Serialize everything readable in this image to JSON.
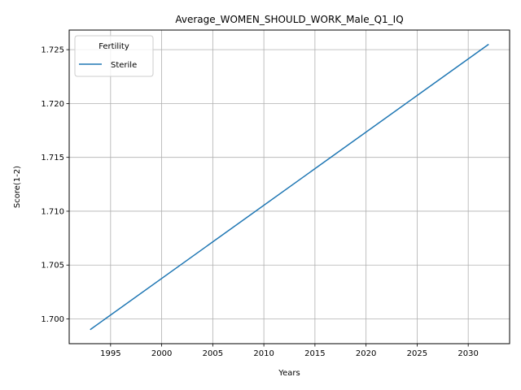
{
  "chart_data": {
    "type": "line",
    "title": "Average_WOMEN_SHOULD_WORK_Male_Q1_IQ",
    "xlabel": "Years",
    "ylabel": "Score(1-2)",
    "xlim": [
      1990.95,
      2034.05
    ],
    "ylim": [
      1.6977,
      1.72682
    ],
    "xticks": [
      1995,
      2000,
      2005,
      2010,
      2015,
      2020,
      2025,
      2030
    ],
    "yticks": [
      1.7,
      1.705,
      1.71,
      1.715,
      1.72,
      1.725
    ],
    "ytick_labels": [
      "1.700",
      "1.705",
      "1.710",
      "1.715",
      "1.720",
      "1.725"
    ],
    "grid": true,
    "legend": {
      "title": "Fertility",
      "placement": "top-left"
    },
    "series": [
      {
        "name": "Sterile",
        "color": "#1f77b4",
        "x": [
          1993,
          2032
        ],
        "y": [
          1.699,
          1.7255
        ]
      }
    ]
  }
}
